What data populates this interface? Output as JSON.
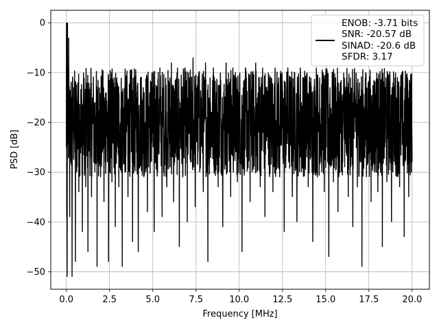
{
  "chart_data": {
    "type": "line",
    "title": "",
    "xlabel": "Frequency [MHz]",
    "ylabel": "PSD [dB]",
    "xlim": [
      -0.9,
      21.0
    ],
    "ylim": [
      -53.5,
      2.5
    ],
    "xticks": [
      0.0,
      2.5,
      5.0,
      7.5,
      10.0,
      12.5,
      15.0,
      17.5,
      20.0
    ],
    "xtick_labels": [
      "0.0",
      "2.5",
      "5.0",
      "7.5",
      "10.0",
      "12.5",
      "15.0",
      "17.5",
      "20.0"
    ],
    "yticks": [
      0,
      -10,
      -20,
      -30,
      -40,
      -50
    ],
    "ytick_labels": [
      "0",
      "−10",
      "−20",
      "−30",
      "−40",
      "−50"
    ],
    "grid": true,
    "legend_position": "top-right",
    "line_color": "#000000",
    "series": [
      {
        "name": "",
        "x_start": 0.0,
        "x_end": 20.0,
        "num_points": 2048,
        "values": [
          -25,
          0,
          -3,
          -39,
          -28,
          -51,
          -18,
          -22,
          -48,
          -30,
          -12,
          -34,
          -20,
          -25,
          -42,
          -16,
          -29,
          -33,
          -21,
          -46,
          -18,
          -27,
          -35,
          -15,
          -24,
          -30,
          -19,
          -49,
          -22,
          -13,
          -31,
          -26,
          -17,
          -36,
          -20,
          -14,
          -28,
          -48,
          -23,
          -16,
          -32,
          -12,
          -27,
          -41,
          -19,
          -15,
          -33,
          -24,
          -18,
          -49,
          -21,
          -13,
          -30,
          -16,
          -35,
          -22,
          -14,
          -26,
          -44,
          -17,
          -29,
          -12,
          -24,
          -46,
          -19,
          -11,
          -27,
          -15,
          -31,
          -20,
          -12,
          -38,
          -23,
          -14,
          -28,
          -10,
          -25,
          -42,
          -16,
          -13,
          -30,
          -21,
          -9,
          -26,
          -39,
          -15,
          -24,
          -11,
          -33,
          -18,
          -12,
          -29,
          -8,
          -23,
          -36,
          -14,
          -27,
          -10,
          -21,
          -45,
          -16,
          -13,
          -31,
          -22,
          -9,
          -25,
          -40,
          -15,
          -11,
          -28,
          -19,
          -7,
          -26,
          -37,
          -13,
          -23,
          -10,
          -30,
          -17,
          -12,
          -34,
          -20,
          -8,
          -27,
          -48,
          -15,
          -11,
          -24,
          -18,
          -9,
          -29,
          -22,
          -13,
          -33,
          -16,
          -10,
          -26,
          -41,
          -14,
          -21,
          -8,
          -30,
          -19,
          -12,
          -35,
          -17,
          -9,
          -25,
          -20,
          -11,
          -32,
          -15,
          -10,
          -28,
          -46,
          -13,
          -22,
          -9,
          -27,
          -18,
          -12,
          -36,
          -16,
          -10,
          -24,
          -21,
          -8,
          -30,
          -14,
          -11,
          -33,
          -19,
          -9,
          -26,
          -39,
          -13,
          -23,
          -10,
          -29,
          -17,
          -12,
          -34,
          -20,
          -9,
          -27,
          -15,
          -11,
          -31,
          -22,
          -10,
          -25,
          -42,
          -14,
          -18,
          -9,
          -28,
          -16,
          -12,
          -35,
          -21,
          -10,
          -26,
          -40,
          -13,
          -24,
          -9,
          -30,
          -17,
          -11,
          -29,
          -19,
          -10,
          -33,
          -15,
          -12,
          -27,
          -44,
          -14,
          -22,
          -9,
          -31,
          -18,
          -11,
          -25,
          -20,
          -10,
          -34,
          -16,
          -12,
          -28,
          -47,
          -13,
          -23,
          -10,
          -32,
          -19,
          -11,
          -26,
          -38,
          -15,
          -12,
          -30,
          -21,
          -10,
          -29,
          -17,
          -13,
          -35,
          -22,
          -11,
          -27,
          -41,
          -14,
          -19,
          -10,
          -33,
          -18,
          -12,
          -28,
          -49,
          -15,
          -24,
          -11,
          -31,
          -20,
          -12,
          -26,
          -36,
          -16,
          -13,
          -30,
          -22,
          -10,
          -34,
          -17,
          -12,
          -28,
          -45,
          -14,
          -25,
          -11,
          -32,
          -19,
          -13,
          -27,
          -40,
          -15,
          -22,
          -11,
          -29,
          -18,
          -12,
          -33,
          -21,
          -10,
          -26,
          -43,
          -16,
          -24,
          -11,
          -35,
          -19,
          -13,
          -28
        ]
      }
    ],
    "legend": {
      "lines": [
        "ENOB: -3.71 bits",
        "SNR: -20.57 dB",
        "SINAD: -20.6 dB",
        "SFDR: 3.17"
      ]
    }
  }
}
